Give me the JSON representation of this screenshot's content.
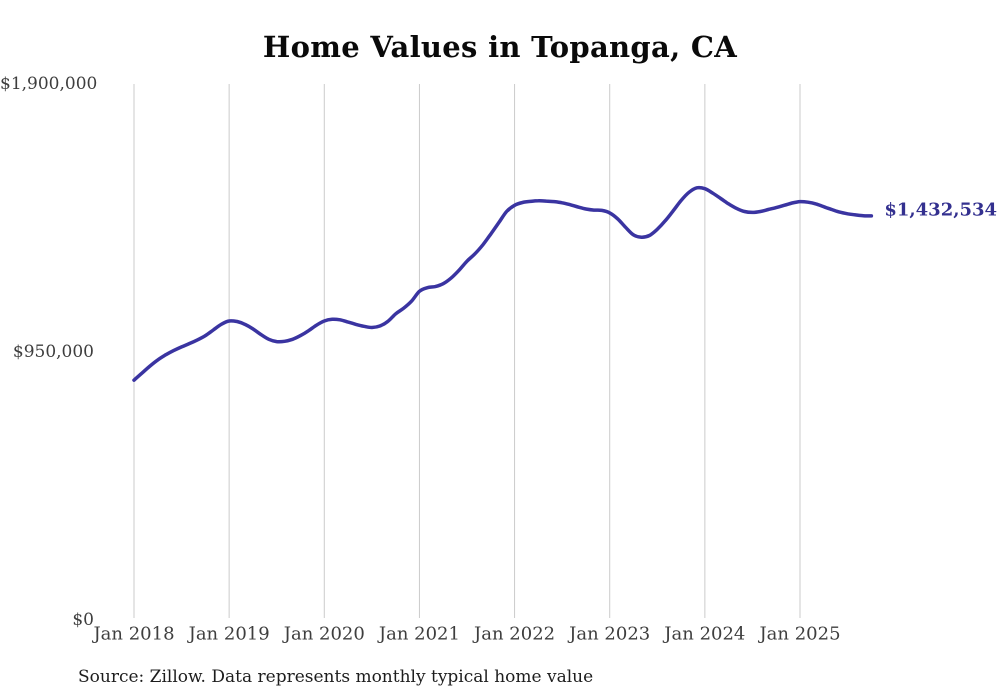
{
  "title": "Home Values in Topanga, CA",
  "source_note": "Source: Zillow. Data represents monthly typical home value",
  "colors": {
    "background": "#ffffff",
    "line": "#3a34a1",
    "end_label": "#33308f",
    "grid": "#cbcbcb",
    "title": "#0a0a0a",
    "axis_label": "#3e3e3e",
    "source": "#1d1d1d"
  },
  "chart_data": {
    "type": "line",
    "title": "Home Values in Topanga, CA",
    "xlabel": "",
    "ylabel": "",
    "ylim": [
      0,
      1900000
    ],
    "grid": "vertical-only",
    "legend": "none",
    "end_label": "$1,432,534",
    "latest_value": 1432534,
    "y_ticks": [
      {
        "label": "$1,900,000",
        "value": 1900000
      },
      {
        "label": "$950,000",
        "value": 950000
      },
      {
        "label": "$0",
        "value": 0
      }
    ],
    "x_tick_labels": [
      "Jan 2018",
      "Jan 2019",
      "Jan 2020",
      "Jan 2021",
      "Jan 2022",
      "Jan 2023",
      "Jan 2024",
      "Jan 2025"
    ],
    "series": [
      {
        "name": "Typical home value",
        "months": [
          "2018-01",
          "2018-02",
          "2018-03",
          "2018-04",
          "2018-05",
          "2018-06",
          "2018-07",
          "2018-08",
          "2018-09",
          "2018-10",
          "2018-11",
          "2018-12",
          "2019-01",
          "2019-02",
          "2019-03",
          "2019-04",
          "2019-05",
          "2019-06",
          "2019-07",
          "2019-08",
          "2019-09",
          "2019-10",
          "2019-11",
          "2019-12",
          "2020-01",
          "2020-02",
          "2020-03",
          "2020-04",
          "2020-05",
          "2020-06",
          "2020-07",
          "2020-08",
          "2020-09",
          "2020-10",
          "2020-11",
          "2020-12",
          "2021-01",
          "2021-02",
          "2021-03",
          "2021-04",
          "2021-05",
          "2021-06",
          "2021-07",
          "2021-08",
          "2021-09",
          "2021-10",
          "2021-11",
          "2021-12",
          "2022-01",
          "2022-02",
          "2022-03",
          "2022-04",
          "2022-05",
          "2022-06",
          "2022-07",
          "2022-08",
          "2022-09",
          "2022-10",
          "2022-11",
          "2022-12",
          "2023-01",
          "2023-02",
          "2023-03",
          "2023-04",
          "2023-05",
          "2023-06",
          "2023-07",
          "2023-08",
          "2023-09",
          "2023-10",
          "2023-11",
          "2023-12",
          "2024-01",
          "2024-02",
          "2024-03",
          "2024-04",
          "2024-05",
          "2024-06",
          "2024-07",
          "2024-08",
          "2024-09",
          "2024-10",
          "2024-11",
          "2024-12",
          "2025-01",
          "2025-02",
          "2025-03",
          "2025-04",
          "2025-05",
          "2025-06",
          "2025-07",
          "2025-08",
          "2025-09",
          "2025-10"
        ],
        "values": [
          850000,
          875000,
          900000,
          922000,
          940000,
          955000,
          968000,
          980000,
          993000,
          1008000,
          1028000,
          1048000,
          1060000,
          1058000,
          1048000,
          1032000,
          1012000,
          995000,
          987000,
          988000,
          995000,
          1008000,
          1025000,
          1045000,
          1060000,
          1066000,
          1064000,
          1056000,
          1048000,
          1041000,
          1037000,
          1042000,
          1058000,
          1085000,
          1105000,
          1130000,
          1165000,
          1178000,
          1182000,
          1192000,
          1212000,
          1240000,
          1272000,
          1298000,
          1330000,
          1368000,
          1408000,
          1448000,
          1470000,
          1480000,
          1484000,
          1486000,
          1485000,
          1483000,
          1479000,
          1472000,
          1464000,
          1457000,
          1453000,
          1452000,
          1443000,
          1422000,
          1392000,
          1365000,
          1357000,
          1363000,
          1385000,
          1415000,
          1450000,
          1487000,
          1516000,
          1532000,
          1529000,
          1513000,
          1494000,
          1475000,
          1459000,
          1448000,
          1445000,
          1448000,
          1455000,
          1462000,
          1470000,
          1478000,
          1483000,
          1481000,
          1475000,
          1465000,
          1455000,
          1446000,
          1440000,
          1436000,
          1433000,
          1432534
        ]
      }
    ]
  }
}
